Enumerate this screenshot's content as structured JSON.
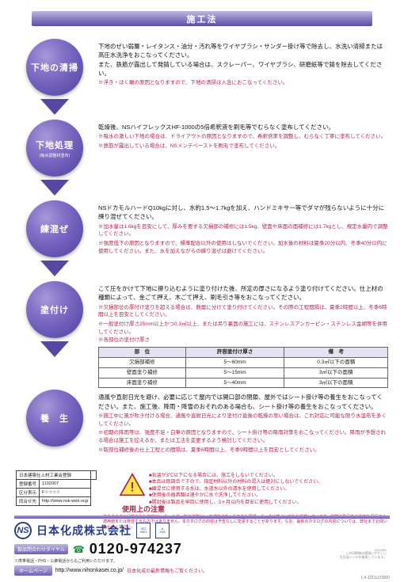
{
  "header": "施工法",
  "steps": [
    {
      "title": "下地の清掃",
      "sub": "",
      "main": "下地のぜい弱層・レイタンス・油分・汚れ等をワイヤブラシ・サンダー掛け等で除去し、水洗い清掃または高圧水洗浄をおこなってください。\nまた、鉄筋が露出して発錆している場合は、スクレーパー、ワイヤブラシ、研磨紙等で錆を除去してください。",
      "notes": [
        "※浮き・はく離の原因となりますので、下地の清掃は入念におこなってください。"
      ]
    },
    {
      "title": "下地処理",
      "sub": "(吸水調整材塗布)",
      "main": "乾燥後、NSハイフレックスHF-1000の5倍希釈液を刷毛等でむらなく塗布してください。",
      "notes": [
        "※吸水の激しい下地の場合は、ドライアウトの原因となりますので、希釈倍率を調整し、むらなく丁寧に塗布してください。",
        "※鉄筋が露出している場合は、NSメンテペーストを刷毛で塗布してください。"
      ]
    },
    {
      "title": "練混ぜ",
      "sub": "",
      "main": "NSドカモルハードQ10kgに対し、水約1.5〜1.7kgを加え、ハンドミキサー等でダマが残らないように十分に練り混ぜてください。",
      "notes": [
        "※加水量は1.6kgを目安にして、厚みを要する欠損部の補修には1.5kg、壁面や床面の面補修には1.7kgとし、規定水量内で調整してください。",
        "※強度低下の原因となりますので、標準配合以外の使用はしないでください。加水後の材料は夏季20分以内、冬季40分以内に使用してください。また、水を加えながらの練り混ぜは避けてください。"
      ]
    },
    {
      "title": "塗付け",
      "sub": "",
      "main": "こて圧をかけて下地に擦り込むように塗り付けた後、所定の厚さになるよう塗り付けてください。仕上材の種類によって、金ごて押え、木ごて押え、刷毛引き等をおこなってください。",
      "notes": [
        "※欠損部位の厚付け塗りを超える場合は、数層に分けて塗り付けてください。その際の工程間隔は、夏季2時間以上、冬季6時間以上を目安としてください。",
        "※一般塗付け厚さ25mm以上かつ0.3㎡以上、または吊り裏面の施工には、ステンレスアンカーピン・ステンレス金網等を併用してください。"
      ],
      "tablenote": "※各部位の塗付け厚さ"
    },
    {
      "title": "養　生",
      "sub": "",
      "main": "通風や直射日光を避け、必要に応じて屋内では開口部の閉鎖、屋外ではシート掛け等の養生をおこなってください。また、施工後、降雨・降雪のおそれのある場合も、シート掛け等の養生をおこなってください。",
      "notes": [
        "※施工中に風が吹き付ける場合、通風や直射日光により塗付け直後の乾燥の早い場合は、これ対応に可能な限り水湿布を多くしてください。",
        "※初期の降雨等は、強度不足・白華の原因となりますので、シート掛け等の降雨対策をおこなってください。降雨が予想される場合は施工を控えるか、または工法を変更するよう検討してください。",
        "※取部位補修後の仕上工程との間隔は、夏季6時間以上、冬季9時間以上を目安としてください。"
      ]
    }
  ],
  "thick_table": {
    "headers": [
      "部　位",
      "許容塗付け厚さ",
      "備　考"
    ],
    "rows": [
      [
        "欠損部補修",
        "5〜60mm",
        "0.3㎡以下の面積"
      ],
      [
        "壁面塗り補修",
        "5〜15mm",
        "3㎡以下の面積"
      ],
      [
        "床面塗り補修",
        "5〜40mm",
        "3㎡以下の面積"
      ]
    ]
  },
  "caution_label": "使用上の注意",
  "caution_items": [
    "■気温が3℃以下になる場合には、施工をしないでください。",
    "■本品は既調合ですので、指定材料以外の材料の混入は絶対にしないでください。",
    "■練混ぜに使用する水は、水道水以外の清水を使用してください。",
    "■使用後の器具類は速やかに水で洗浄してください。",
    "■開封後は製品を早目に使用し、3ヶ月以内を目安に使用してください。"
  ],
  "catalog_note": "本カタログに記載された内容(データ・仕様・施工法等)は、作成時点で入手できた情報・データに基づいており掲載しています。実際の製品での使用を保証する適用値または発音するものではありません。本カタログの内容は予告なしに変更することがあります。なお、最新のカタログの内容については、弊社までお問い合わせください。",
  "cert": {
    "r1": [
      "日本建築仕上材工業会登録",
      ""
    ],
    "r2": [
      "登録番号",
      "1102007"
    ],
    "r3": [
      "区分表示",
      "F☆☆☆☆"
    ],
    "r4": [
      "同合せ先",
      "http://www.nsk-web.org/"
    ]
  },
  "company": "日本化成株式会社",
  "iso": [
    "ISO",
    "9001",
    "A",
    "JSA"
  ],
  "dial_label": "製品問合わせダイヤル",
  "dial_num": "0120-974237",
  "dial_note": "※携帯電話・PHS・公衆電話からもご利用いただけます。",
  "hp_label": "ホームページ",
  "hp_url": "http://www.nihonkasei.co.jp/",
  "hp_note": "日本化成の最新情報もご覧ください。",
  "footer_code": "1.4-1211LD3000",
  "eco": "SOYINK\nこの印刷物は環境にやさしい\n大豆油インキを使用しています。",
  "colors": {
    "purple_dark": "#5548a3",
    "purple_light": "#a898d8",
    "red": "#b2244a",
    "blue": "#2a3d8f"
  }
}
